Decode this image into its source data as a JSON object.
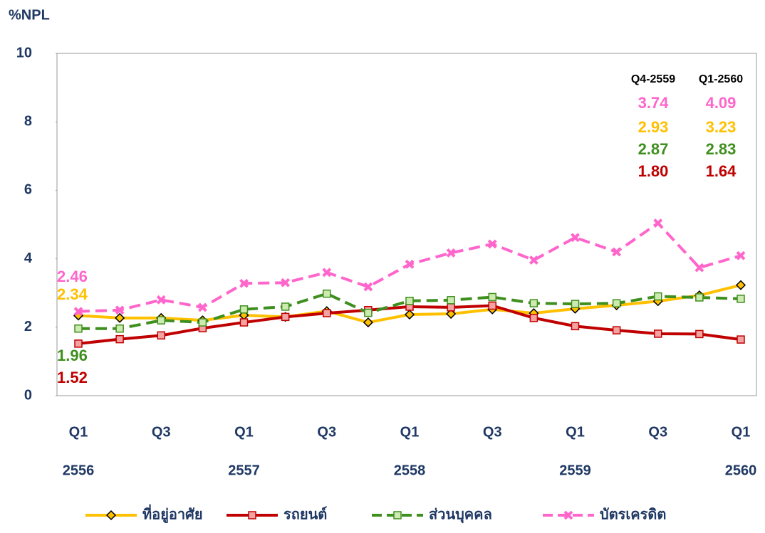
{
  "chart_data": {
    "type": "line",
    "y_axis_title": "%NPL",
    "categories": [
      "Q1",
      null,
      "Q3",
      null,
      "Q1",
      null,
      "Q3",
      null,
      "Q1",
      null,
      "Q3",
      null,
      "Q1",
      null,
      "Q3",
      null,
      "Q1"
    ],
    "year_labels": [
      "2556",
      null,
      null,
      null,
      "2557",
      null,
      null,
      null,
      "2558",
      null,
      null,
      null,
      "2559",
      null,
      null,
      null,
      "2560"
    ],
    "ylim": [
      0,
      10
    ],
    "yticks": [
      0,
      2,
      4,
      6,
      8,
      10
    ],
    "grid": false,
    "annotation_headers": [
      "Q4-2559",
      "Q1-2560"
    ],
    "series": [
      {
        "name": "ที่อยู่อาศัย",
        "color": "#FFC000",
        "marker": "diamond",
        "dash": false,
        "values": [
          2.34,
          2.27,
          2.27,
          2.2,
          2.35,
          2.3,
          2.47,
          2.14,
          2.37,
          2.39,
          2.52,
          2.41,
          2.54,
          2.64,
          2.76,
          2.93,
          3.23
        ],
        "value_labels": [
          "2.34",
          null,
          null,
          null,
          null,
          null,
          null,
          null,
          null,
          null,
          null,
          null,
          null,
          null,
          null,
          "2.93",
          "3.23"
        ]
      },
      {
        "name": "รถยนต์",
        "color": "#C00000",
        "marker": "square",
        "dash": false,
        "values": [
          1.52,
          1.65,
          1.76,
          1.97,
          2.14,
          2.3,
          2.41,
          2.5,
          2.6,
          2.58,
          2.63,
          2.27,
          2.03,
          1.91,
          1.81,
          1.8,
          1.64
        ],
        "value_labels": [
          "1.52",
          null,
          null,
          null,
          null,
          null,
          null,
          null,
          null,
          null,
          null,
          null,
          null,
          null,
          null,
          "1.80",
          "1.64"
        ]
      },
      {
        "name": "ส่วนบุคคล",
        "color": "#3F8F1F",
        "marker": "square-green",
        "dash": true,
        "values": [
          1.96,
          1.96,
          2.2,
          2.14,
          2.52,
          2.6,
          2.98,
          2.42,
          2.77,
          2.79,
          2.88,
          2.7,
          2.68,
          2.7,
          2.9,
          2.87,
          2.83
        ],
        "value_labels": [
          "1.96",
          null,
          null,
          null,
          null,
          null,
          null,
          null,
          null,
          null,
          null,
          null,
          null,
          null,
          null,
          "2.87",
          "2.83"
        ]
      },
      {
        "name": "บัตรเครดิต",
        "color": "#FF66CC",
        "marker": "x",
        "dash": true,
        "values": [
          2.46,
          2.5,
          2.8,
          2.58,
          3.28,
          3.3,
          3.6,
          3.18,
          3.84,
          4.17,
          4.43,
          3.96,
          4.62,
          4.2,
          5.04,
          3.74,
          4.09
        ],
        "value_labels": [
          "2.46",
          null,
          null,
          null,
          null,
          null,
          null,
          null,
          null,
          null,
          null,
          null,
          null,
          null,
          null,
          "3.74",
          "4.09"
        ]
      }
    ]
  }
}
